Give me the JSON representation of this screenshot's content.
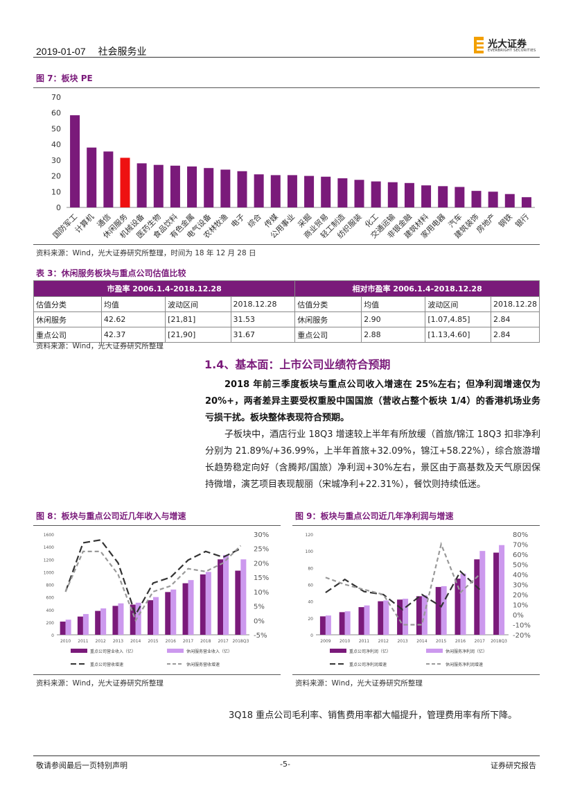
{
  "header": {
    "date": "2019-01-07",
    "sector": "社会服务业",
    "logo_cn": "光大证券",
    "logo_en": "EVERBRIGHT SECURITIES"
  },
  "fig7": {
    "title": "图 7：板块 PE",
    "source": "资料来源：Wind，光大证券研究所整理，时间为 18 年 12 月 28 日",
    "chart_data": {
      "type": "bar",
      "categories": [
        "国防军工",
        "计算机",
        "通信",
        "休闲服务",
        "机械设备",
        "医药生物",
        "食品饮料",
        "有色金属",
        "电气设备",
        "农林牧渔",
        "电子",
        "综合",
        "传媒",
        "公用事业",
        "采掘",
        "商业贸易",
        "轻工制造",
        "纺织服装",
        "化工",
        "交通运输",
        "非银金融",
        "建筑材料",
        "家用电器",
        "汽车",
        "建筑装饰",
        "房地产",
        "钢铁",
        "银行"
      ],
      "values": [
        58.5,
        38,
        35.5,
        31.5,
        28,
        27,
        26.5,
        26,
        25,
        24,
        23,
        21,
        20.5,
        20.5,
        20,
        19.5,
        18.5,
        17.5,
        16.5,
        16,
        15.5,
        14,
        13.5,
        13,
        10.5,
        10,
        8.5,
        6.5
      ],
      "highlight": "休闲服务",
      "yticks": [
        "0",
        "10",
        "20",
        "30",
        "40",
        "50",
        "60",
        "70"
      ],
      "ylim": [
        0,
        70
      ],
      "colors": {
        "bar": "#7a1a7a",
        "highlight": "#ee1111"
      }
    }
  },
  "table3": {
    "title": "表 3：休闲服务板块与重点公司估值比较",
    "group1": "市盈率 2006.1.4-2018.12.28",
    "group2": "相对市盈率 2006.1.4-2018.12.28",
    "headers": [
      "估值分类",
      "均值",
      "波动区间",
      "2018.12.28",
      "估值分类",
      "均值",
      "波动区间",
      "2018.12.28"
    ],
    "rows": [
      [
        "休闲服务",
        "42.62",
        "[21,81]",
        "31.53",
        "休闲服务",
        "2.90",
        "[1.07,4.85]",
        "2.84"
      ],
      [
        "重点公司",
        "42.37",
        "[21,90]",
        "31.67",
        "重点公司",
        "2.88",
        "[1.13,4.60]",
        "2.84"
      ]
    ],
    "source": "资料来源：Wind，光大证券研究所整理"
  },
  "section": {
    "title": "1.4、基本面：上市公司业绩符合预期",
    "p1": "2018 年前三季度板块与重点公司收入增速在 25%左右；但净利润增速仅为 20%+，两者差异主要受权重股中国国旅（营收占整个板块 1/4）的香港机场业务亏损干扰。板块整体表现符合预期。",
    "p2": "子板块中，酒店行业 18Q3 增速较上半年有所放缓（首旅/锦江 18Q3 扣非净利分别为 21.89%/+36.99%，上半年首旅+32.09%，锦江+58.22%），综合旅游增长趋势稳定向好（含腾邦/国旅）净利润+30%左右，景区由于高基数及天气原因保持微增，演艺项目表现靓丽（宋城净利+22.31%），餐饮则持续低迷。"
  },
  "fig8": {
    "title": "图 8：板块与重点公司近几年收入与增速",
    "source": "资料来源：Wind，光大证券研究所整理",
    "chart_data": {
      "type": "bar",
      "categories": [
        "2010",
        "2011",
        "2012",
        "2013",
        "2014",
        "2015",
        "2016",
        "2017",
        "2018",
        "2017",
        "2018Q3"
      ],
      "series": [
        {
          "name": "重点公司营业收入（亿）",
          "values": [
            210,
            290,
            380,
            460,
            480,
            550,
            680,
            820,
            960,
            1200,
            1020
          ]
        },
        {
          "name": "休闲服务营业收入（亿）",
          "values": [
            240,
            330,
            420,
            500,
            510,
            600,
            720,
            870,
            1000,
            1270,
            1200
          ]
        },
        {
          "name": "重点公司营收增速",
          "values": [
            0.1,
            0.27,
            0.28,
            0.2,
            0.02,
            0.13,
            0.15,
            0.21,
            0.24,
            0.22,
            0.25
          ]
        },
        {
          "name": "休闲服务营收增速",
          "values": [
            0.1,
            0.24,
            0.24,
            0.16,
            0.0,
            0.1,
            0.12,
            0.18,
            0.17,
            0.2,
            0.26
          ]
        }
      ],
      "y_left_ticks": [
        "1600",
        "1400",
        "1200",
        "1000",
        "800",
        "600",
        "400",
        "200",
        "0"
      ],
      "y_right_ticks": [
        "30%",
        "25%",
        "20%",
        "15%",
        "10%",
        "5%",
        "0%",
        "-5%"
      ],
      "colors": {
        "dark": "#7a1a7a",
        "light": "#cc99ee",
        "line_dark": "#333333",
        "line_light": "#999999"
      }
    }
  },
  "fig9": {
    "title": "图 9：板块与重点公司近几年净利润与增速",
    "source": "资料来源：Wind，光大证券研究所整理",
    "chart_data": {
      "type": "bar",
      "categories": [
        "2009",
        "2010",
        "2011",
        "2012",
        "2013",
        "2014",
        "2015",
        "2016",
        "2017",
        "2018Q3"
      ],
      "series": [
        {
          "name": "重点公司净利润（亿）",
          "values": [
            22,
            27,
            33,
            40,
            42,
            46,
            57,
            67,
            90,
            98
          ]
        },
        {
          "name": "休闲服务净利润（亿）",
          "values": [
            23,
            28,
            35,
            41,
            43,
            47,
            58,
            73,
            100,
            107
          ]
        },
        {
          "name": "重点公司净利润增速",
          "values": [
            0.22,
            0.35,
            0.23,
            0.2,
            0.05,
            0.2,
            0.08,
            0.43,
            0.25,
            null
          ]
        },
        {
          "name": "休闲服务净利润增速",
          "values": [
            0.37,
            0.3,
            0.25,
            0.2,
            -0.1,
            -0.1,
            0.7,
            0.22,
            0.4,
            null
          ]
        }
      ],
      "y_left_ticks": [
        "120",
        "100",
        "80",
        "60",
        "40",
        "20",
        "0"
      ],
      "y_right_ticks": [
        "80%",
        "70%",
        "60%",
        "50%",
        "40%",
        "30%",
        "20%",
        "10%",
        "0%",
        "-10%",
        "-20%"
      ],
      "colors": {
        "dark": "#7a1a7a",
        "light": "#cc99ee",
        "line_dark": "#333333",
        "line_light": "#999999"
      }
    }
  },
  "p3": "3Q18 重点公司毛利率、销售费用率都大幅提升，管理费用率有所下降。",
  "footer": {
    "left": "敬请参阅最后一页特别声明",
    "center": "-5-",
    "right": "证券研究报告"
  }
}
